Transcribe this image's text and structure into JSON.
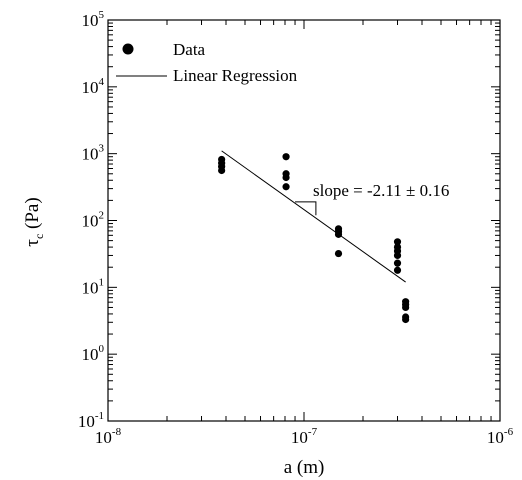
{
  "chart_data": {
    "type": "scatter",
    "xlabel": "a (m)",
    "ylabel_main": "τ",
    "ylabel_sub": "c",
    "ylabel_unit": "(Pa)",
    "x_scale": "log",
    "y_scale": "log",
    "xlim": [
      1e-08,
      1e-06
    ],
    "ylim": [
      0.1,
      100000
    ],
    "grid": false,
    "legend_placement": "top-left",
    "x_ticks": [
      {
        "base": "10",
        "exp": "-8",
        "value": 1e-08
      },
      {
        "base": "10",
        "exp": "-7",
        "value": 1e-07
      },
      {
        "base": "10",
        "exp": "-6",
        "value": 1e-06
      }
    ],
    "y_ticks": [
      {
        "base": "10",
        "exp": "-1",
        "value": 0.1
      },
      {
        "base": "10",
        "exp": "0",
        "value": 1
      },
      {
        "base": "10",
        "exp": "1",
        "value": 10
      },
      {
        "base": "10",
        "exp": "2",
        "value": 100
      },
      {
        "base": "10",
        "exp": "3",
        "value": 1000
      },
      {
        "base": "10",
        "exp": "4",
        "value": 10000
      },
      {
        "base": "10",
        "exp": "5",
        "value": 100000
      }
    ],
    "series": [
      {
        "name": "Data",
        "kind": "scatter",
        "marker": "filled-circle",
        "color": "#000000",
        "points": [
          [
            3.8e-08,
            820
          ],
          [
            3.8e-08,
            720
          ],
          [
            3.8e-08,
            640
          ],
          [
            3.8e-08,
            560
          ],
          [
            8.1e-08,
            900
          ],
          [
            8.1e-08,
            500
          ],
          [
            8.1e-08,
            440
          ],
          [
            8.1e-08,
            320
          ],
          [
            1.5e-07,
            75
          ],
          [
            1.5e-07,
            68
          ],
          [
            1.5e-07,
            62
          ],
          [
            1.5e-07,
            32
          ],
          [
            3e-07,
            48
          ],
          [
            3e-07,
            40
          ],
          [
            3e-07,
            35
          ],
          [
            3e-07,
            30
          ],
          [
            3e-07,
            23
          ],
          [
            3e-07,
            18
          ],
          [
            3.3e-07,
            6.1
          ],
          [
            3.3e-07,
            5.5
          ],
          [
            3.3e-07,
            5.0
          ],
          [
            3.3e-07,
            3.6
          ],
          [
            3.3e-07,
            3.3
          ]
        ]
      },
      {
        "name": "Linear Regression",
        "kind": "line",
        "color": "#000000",
        "points": [
          [
            3.8e-08,
            1100
          ],
          [
            3.3e-07,
            12
          ]
        ]
      }
    ],
    "annotation": {
      "text": "slope = -2.11 ± 0.16",
      "triangle_x": [
        9e-08,
        1.15e-07
      ],
      "triangle_y": [
        120,
        190
      ]
    }
  }
}
